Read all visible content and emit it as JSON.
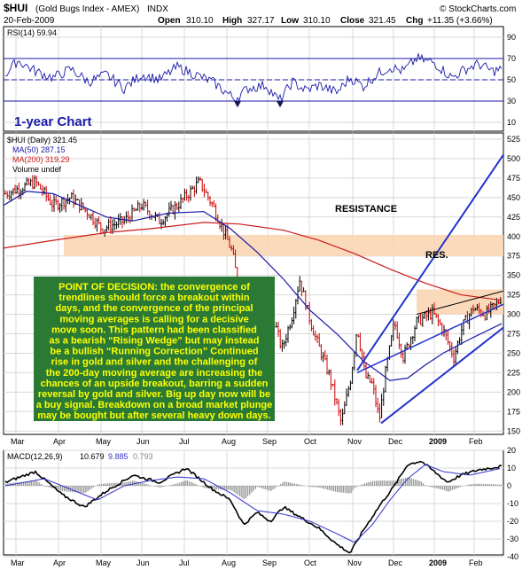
{
  "header": {
    "symbol": "$HUI",
    "name": "(Gold Bugs Index - AMEX)",
    "exchange": "INDX",
    "date": "20-Feb-2009",
    "open_label": "Open",
    "open": "310.10",
    "high_label": "High",
    "high": "327.17",
    "low_label": "Low",
    "low": "310.10",
    "close_label": "Close",
    "close": "321.45",
    "chg_label": "Chg",
    "chg": "+11.35 (+3.66%)",
    "watermark": "© StockCharts.com"
  },
  "colors": {
    "bg": "#ffffff",
    "plot": "#ffffff",
    "grid": "#d8d8d8",
    "annotation_bg": "#2a7a36",
    "annotation_text": "#ffff00",
    "price_up": "#000000",
    "price_down": "#cc0000",
    "ma50": "#1a1aa8",
    "ma200": "#cc1a1a",
    "trendline": "#2233cc",
    "band": "#fad6b4",
    "rsi": "#1a1aa8",
    "macd": "#000000",
    "signal": "#3333cc",
    "hist": "#9a9a9a"
  },
  "rsi_panel": {
    "legend": "RSI(14) 59.94",
    "ticks": [
      "90",
      "70",
      "50",
      "30",
      "10"
    ],
    "chart_label": "1-year Chart"
  },
  "price_panel": {
    "legend_price": "$HUI (Daily) 321.45",
    "legend_ma50": "MA(50) 287.15",
    "legend_ma200": "MA(200) 319.29",
    "legend_volume": "Volume undef",
    "ticks": [
      "525",
      "500",
      "475",
      "450",
      "425",
      "400",
      "375",
      "350",
      "325",
      "300",
      "275",
      "250",
      "225",
      "200",
      "175",
      "150"
    ],
    "resistance_label": "RESISTANCE",
    "res_label": "RES.",
    "annotation_lines": [
      "POINT OF DECISION: the convergence of",
      "trendlines should force a breakout within",
      "days, and the convergence of the principal",
      "moving averages is calling for a decisive",
      "move soon. This pattern had been classified",
      "as a bearish “Rising Wedge” but may instead",
      "be a bullish “Running Correction”  Continued",
      "rise in gold and silver and the challenging of",
      "the 200-day moving average are increasing the",
      "chances of an upside breakout, barring a sudden",
      "reversal by gold and silver. Big up day now will be",
      "a buy signal. Breakdown on a broad market plunge",
      "may be bought but after several heavy down days."
    ]
  },
  "months": [
    "Mar",
    "Apr",
    "May",
    "Jun",
    "Jul",
    "Aug",
    "Sep",
    "Oct",
    "Nov",
    "Dec",
    "2009",
    "Feb"
  ],
  "macd_panel": {
    "legend_name": "MACD(12,26,9)",
    "legend_macd": "10.679",
    "legend_signal": "9.885",
    "legend_hist": "0.793",
    "ticks": [
      "20",
      "10",
      "0",
      "-10",
      "-20",
      "-30",
      "-40"
    ]
  },
  "chart_data": [
    {
      "type": "line",
      "name": "RSI(14)",
      "ylim": [
        10,
        90
      ],
      "levels": [
        70,
        50,
        30
      ],
      "x": [
        "Mar",
        "Apr",
        "May",
        "Jun",
        "Jul",
        "Aug",
        "Sep",
        "Oct",
        "Nov",
        "Dec",
        "Jan",
        "Feb"
      ],
      "values": [
        62,
        52,
        48,
        50,
        57,
        42,
        40,
        35,
        46,
        57,
        60,
        60
      ],
      "last": 59.94
    },
    {
      "type": "line",
      "name": "$HUI (Daily)",
      "ylim": [
        150,
        525
      ],
      "x": [
        "Mar",
        "Apr",
        "May",
        "Jun",
        "Jul",
        "Aug",
        "Sep",
        "Oct",
        "Nov",
        "Dec",
        "Jan",
        "Feb"
      ],
      "series": [
        {
          "name": "$HUI (Daily)",
          "values": [
            455,
            420,
            415,
            435,
            460,
            420,
            330,
            265,
            155,
            225,
            280,
            321.45
          ]
        },
        {
          "name": "MA(50)",
          "values": [
            460,
            440,
            430,
            425,
            432,
            425,
            375,
            320,
            265,
            215,
            240,
            287.15
          ]
        },
        {
          "name": "MA(200)",
          "values": [
            385,
            395,
            405,
            410,
            415,
            418,
            415,
            400,
            380,
            355,
            335,
            319.29
          ]
        }
      ],
      "last": 321.45,
      "annotations": [
        "RESISTANCE",
        "RES."
      ],
      "grid": true
    },
    {
      "type": "line",
      "name": "MACD(12,26,9)",
      "ylim": [
        -40,
        20
      ],
      "x": [
        "Mar",
        "Apr",
        "May",
        "Jun",
        "Jul",
        "Aug",
        "Sep",
        "Oct",
        "Nov",
        "Dec",
        "Jan",
        "Feb"
      ],
      "series": [
        {
          "name": "MACD",
          "values": [
            0,
            -5,
            -3,
            4,
            8,
            -10,
            -20,
            -25,
            -35,
            5,
            15,
            10.679
          ]
        },
        {
          "name": "Signal",
          "values": [
            0,
            -3,
            -4,
            2,
            6,
            -5,
            -15,
            -22,
            -28,
            -8,
            12,
            9.885
          ]
        }
      ],
      "histogram_last": 0.793
    }
  ]
}
